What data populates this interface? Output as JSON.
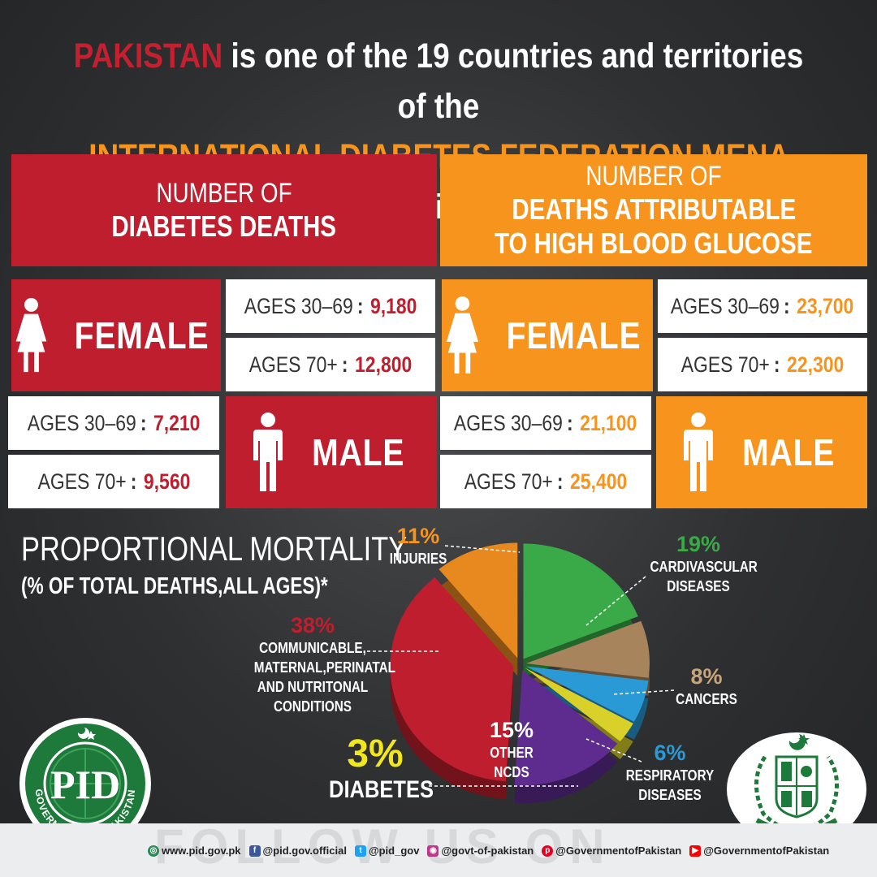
{
  "headline": {
    "country": "PAKISTAN",
    "line1_rest": "is one of the 19 countries and territories of the",
    "federation": "INTERNATIONAL DIABETES FEDERATION MENA",
    "line2_rest": "region."
  },
  "diabetes_deaths": {
    "title_line1": "NUMBER OF",
    "title_line2": "DIABETES DEATHS",
    "female_label": "FEMALE",
    "male_label": "MALE",
    "female_30_69_label": "AGES 30–69",
    "female_30_69_value": "9,180",
    "female_70_label": "AGES 70+",
    "female_70_value": "12,800",
    "male_30_69_label": "AGES 30–69",
    "male_30_69_value": "7,210",
    "male_70_label": "AGES 70+",
    "male_70_value": "9,560"
  },
  "glucose_deaths": {
    "title_line1_a": "NUMBER OF",
    "title_line1_b": "DEATHS ATTRIBUTABLE",
    "title_line2": "TO HIGH BLOOD GLUCOSE",
    "female_label": "FEMALE",
    "male_label": "MALE",
    "female_30_69_label": "AGES 30–69",
    "female_30_69_value": "23,700",
    "female_70_label": "AGES 70+",
    "female_70_value": "22,300",
    "male_30_69_label": "AGES 30–69",
    "male_30_69_value": "21,100",
    "male_70_label": "AGES 70+",
    "male_70_value": "25,400"
  },
  "mortality": {
    "title": "PROPORTIONAL MORTALITY",
    "subtitle": "(% OF TOTAL DEATHS,ALL AGES)*"
  },
  "chart_data": {
    "type": "pie",
    "title": "PROPORTIONAL MORTALITY",
    "subtitle": "(% OF TOTAL DEATHS,ALL AGES)*",
    "slices": [
      {
        "pct_label": "11%",
        "value": 11,
        "name_lines": [
          "INJURIES"
        ],
        "color": "#e8891f"
      },
      {
        "pct_label": "19%",
        "value": 19,
        "name_lines": [
          "CARDIVASCULAR",
          "DISEASES"
        ],
        "color": "#3aaa48"
      },
      {
        "pct_label": "8%",
        "value": 8,
        "name_lines": [
          "CANCERS"
        ],
        "color": "#a8845c"
      },
      {
        "pct_label": "6%",
        "value": 6,
        "name_lines": [
          "RESPIRATORY",
          "DISEASES"
        ],
        "color": "#2a9ad6"
      },
      {
        "pct_label": "3%",
        "value": 3,
        "name_lines": [
          "DIABETES"
        ],
        "color": "#d9d12a"
      },
      {
        "pct_label": "15%",
        "value": 15,
        "name_lines": [
          "OTHER NCDS"
        ],
        "color": "#5e2b8f"
      },
      {
        "pct_label": "38%",
        "value": 38,
        "name_lines": [
          "COMMUNICABLE,",
          "MATERNAL,PERINATAL",
          "AND NUTRITONAL",
          "CONDITIONS"
        ],
        "color": "#be1e2d"
      }
    ]
  },
  "logo_left": {
    "text": "GOVERNMENT OF PAKISTAN",
    "initials": "PID"
  },
  "footer": {
    "watermark": "FOLLOW US ON",
    "website": "www.pid.gov.pk",
    "facebook": "@pid.gov.official",
    "twitter": "@pid_gov",
    "instagram": "@govt-of-pakistan",
    "pinterest": "@GovernmentofPakistan",
    "youtube": "@GovernmentofPakistan"
  }
}
